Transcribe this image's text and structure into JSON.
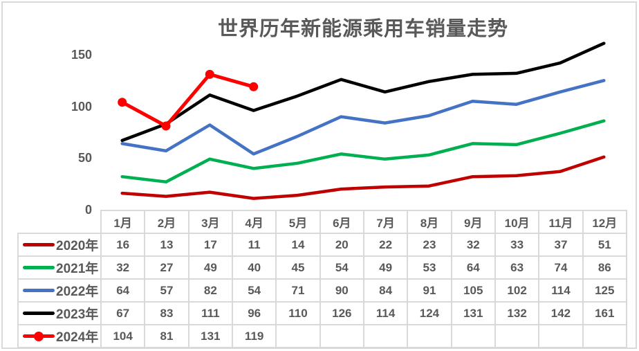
{
  "chart_data": {
    "type": "line",
    "title": "世界历年新能源乘用车销量走势",
    "categories": [
      "1月",
      "2月",
      "3月",
      "4月",
      "5月",
      "6月",
      "7月",
      "8月",
      "9月",
      "10月",
      "11月",
      "12月"
    ],
    "series": [
      {
        "name": "2020年",
        "color": "#C00000",
        "marker": false,
        "values": [
          16,
          13,
          17,
          11,
          14,
          20,
          22,
          23,
          32,
          33,
          37,
          51
        ]
      },
      {
        "name": "2021年",
        "color": "#00B050",
        "marker": false,
        "values": [
          32,
          27,
          49,
          40,
          45,
          54,
          49,
          53,
          64,
          63,
          74,
          86
        ]
      },
      {
        "name": "2022年",
        "color": "#4472C4",
        "marker": false,
        "values": [
          64,
          57,
          82,
          54,
          71,
          90,
          84,
          91,
          105,
          102,
          114,
          125
        ]
      },
      {
        "name": "2023年",
        "color": "#000000",
        "marker": false,
        "values": [
          67,
          83,
          111,
          96,
          110,
          126,
          114,
          124,
          131,
          132,
          142,
          161
        ]
      },
      {
        "name": "2024年",
        "color": "#FF0000",
        "marker": true,
        "values": [
          104,
          81,
          131,
          119,
          null,
          null,
          null,
          null,
          null,
          null,
          null,
          null
        ]
      }
    ],
    "xlabel": "",
    "ylabel": "",
    "ylim": [
      0,
      150
    ],
    "yticks": [
      0,
      50,
      100,
      150
    ],
    "grid": false,
    "legend_position": "table-left",
    "data_table_shown": true,
    "text_color": "#595959",
    "table_border_color": "#D9D9D9"
  }
}
